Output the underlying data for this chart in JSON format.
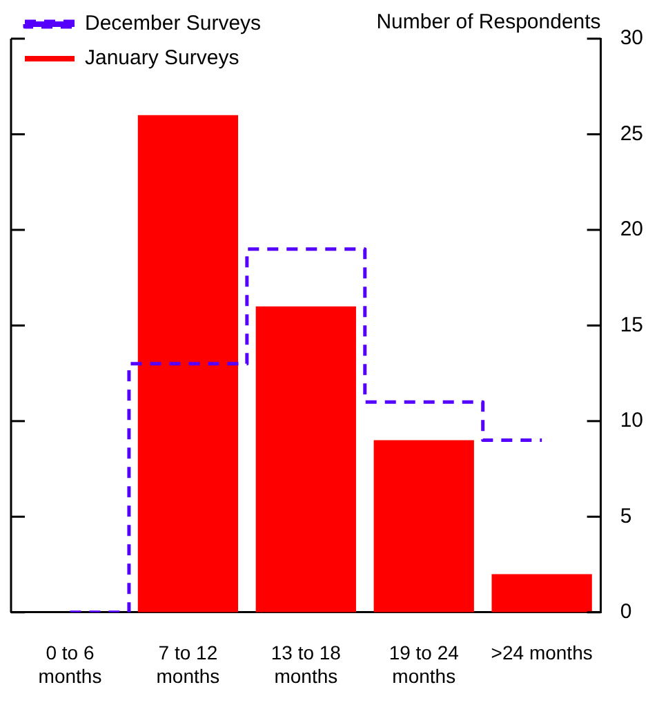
{
  "chart_data": {
    "type": "bar",
    "ylabel": "Number of Respondents",
    "categories": [
      "0 to 6 months",
      "7 to 12 months",
      "13 to 18 months",
      "19 to 24 months",
      ">24 months"
    ],
    "series": [
      {
        "name": "January Surveys",
        "color": "#ff0000",
        "values": [
          0,
          26,
          16,
          9,
          2
        ]
      },
      {
        "name": "December Surveys",
        "type": "step",
        "color": "#5500ff",
        "line_style": "dashed",
        "values": [
          0,
          13,
          19,
          11,
          9
        ]
      }
    ],
    "ylim": [
      0,
      30
    ],
    "yticks": [
      0,
      5,
      10,
      15,
      20,
      25,
      30
    ],
    "grid": false,
    "legend": "top left"
  }
}
